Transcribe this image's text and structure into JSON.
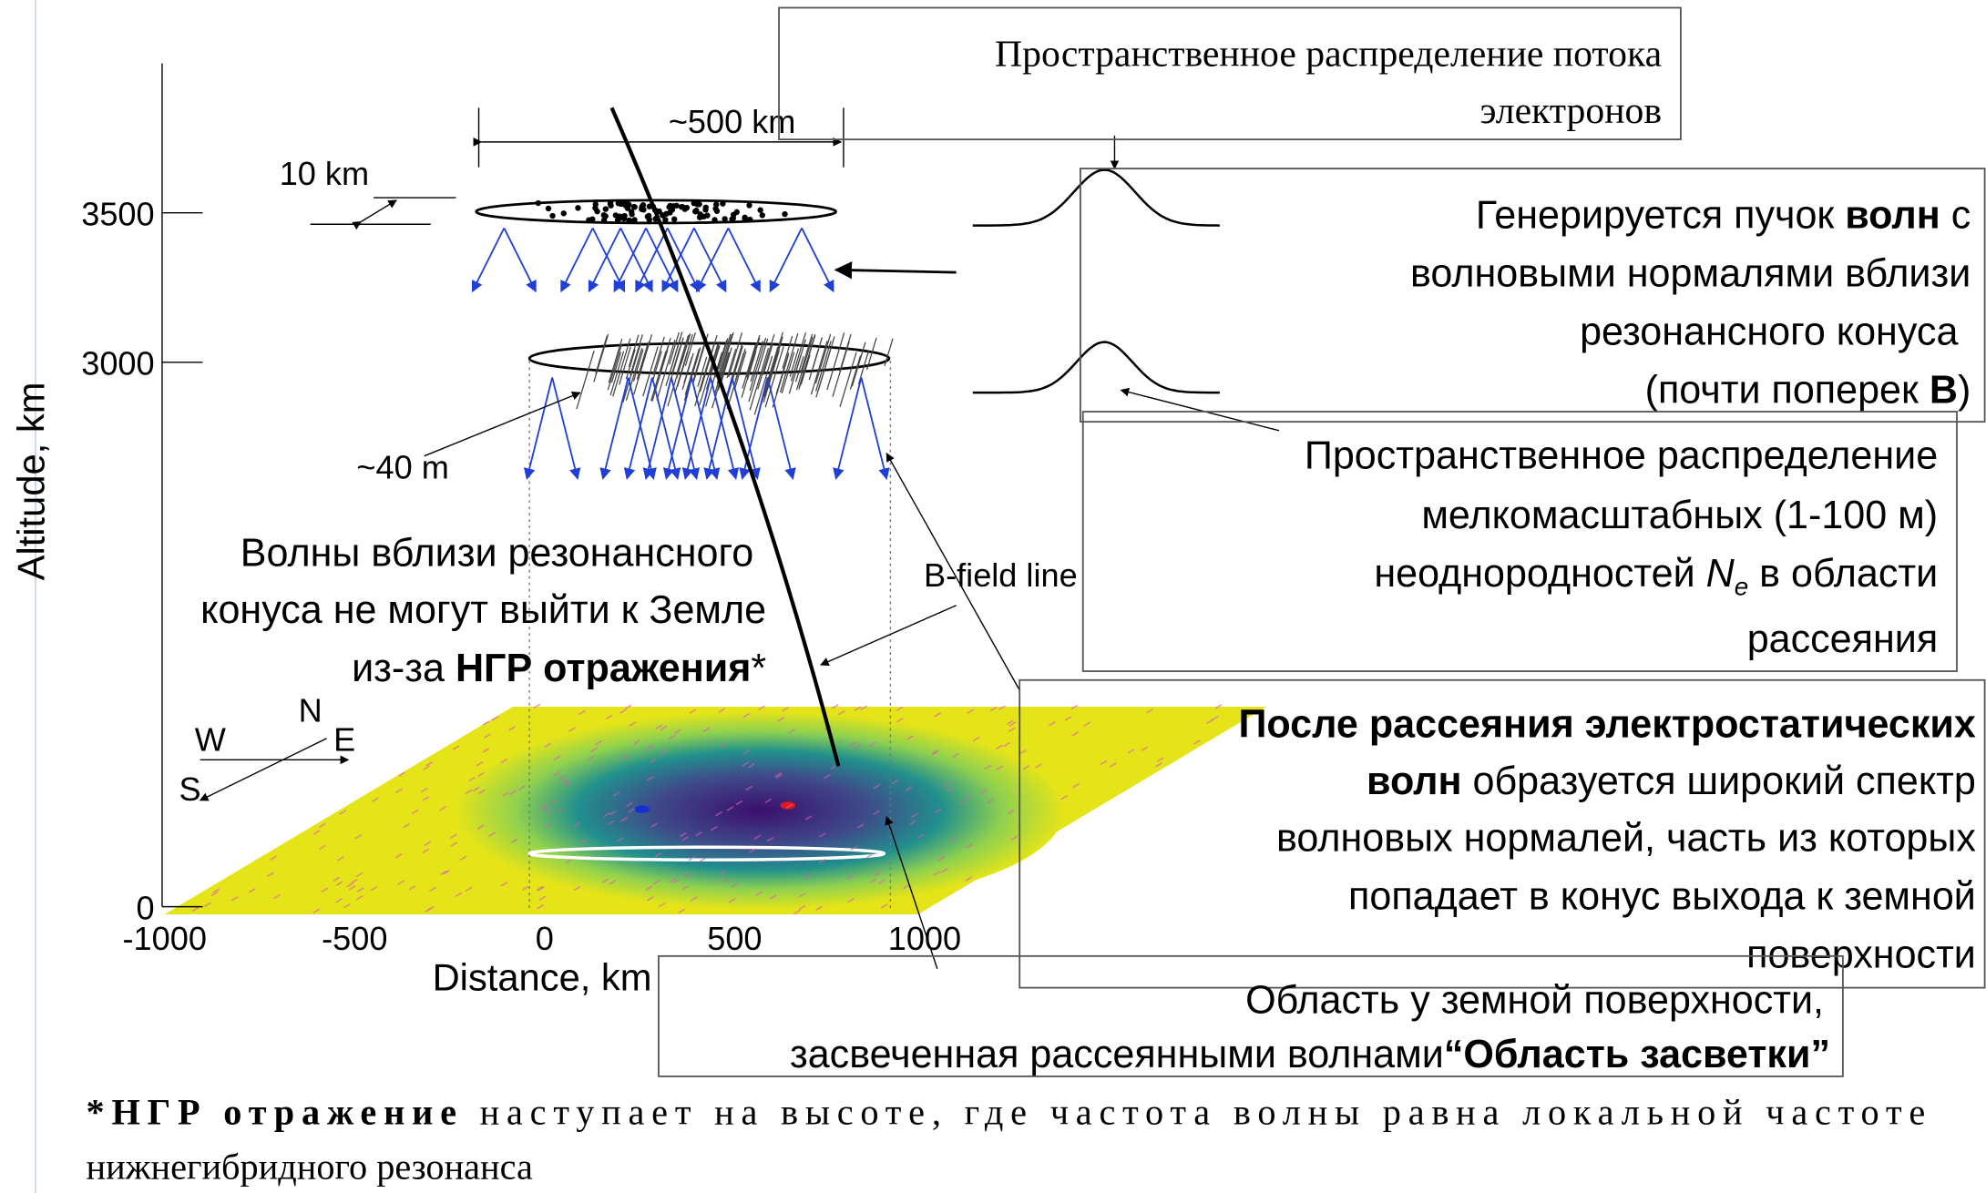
{
  "axes": {
    "y_label": "Altitude, km",
    "x_label": "Distance, km",
    "yticks": [
      3500,
      3000,
      0
    ],
    "xticks": [
      -1000,
      -500,
      0,
      500,
      1000
    ]
  },
  "annotations": {
    "width": "~500 km",
    "thickness": "10 km",
    "scale": "~40 m",
    "field_line": "B-field line",
    "compass": {
      "n": "N",
      "w": "W",
      "e": "E",
      "s": "S"
    }
  },
  "flux_box": {
    "lines": [
      "Пространственное распределение потока",
      "электронов"
    ]
  },
  "generation_box": {
    "lines": [
      [
        "Генерируется пучок ",
        "волн",
        " с"
      ],
      [
        "волновыми нормалями вблизи"
      ],
      [
        "резонансного конуса"
      ],
      [
        "(почти поперек ",
        "B",
        ")"
      ]
    ]
  },
  "irregularities_box": {
    "lines": [
      [
        "Пространственное распределение"
      ],
      [
        "мелкомасштабных (1-100 м)"
      ],
      [
        "неоднородностей ",
        "N",
        "e",
        " в области"
      ],
      [
        "рассеяния"
      ]
    ]
  },
  "reflection_note": {
    "lines": [
      [
        "Волны вблизи резонансного"
      ],
      [
        "конуса не могут выйти к Земле"
      ],
      [
        "из-за ",
        "НГР отражения",
        "*"
      ]
    ]
  },
  "scattering_box": {
    "lines": [
      [
        "После рассеяния электростатических"
      ],
      [
        "волн",
        " образуется широкий спектр"
      ],
      [
        "волновых нормалей, часть из которых"
      ],
      [
        "попадает в конус выхода к земной"
      ],
      [
        "поверхности"
      ]
    ]
  },
  "illumination_box": {
    "lines": [
      [
        "Область у земной поверхности,"
      ],
      [
        "засвеченная рассеянными волнами",
        "“Область засветки”"
      ]
    ]
  },
  "footnote": {
    "lines": [
      [
        "*НГР отражение",
        " наступает на высоте, где частота волны равна локальной частоте"
      ],
      [
        "нижнегибридного резонанса"
      ]
    ]
  }
}
